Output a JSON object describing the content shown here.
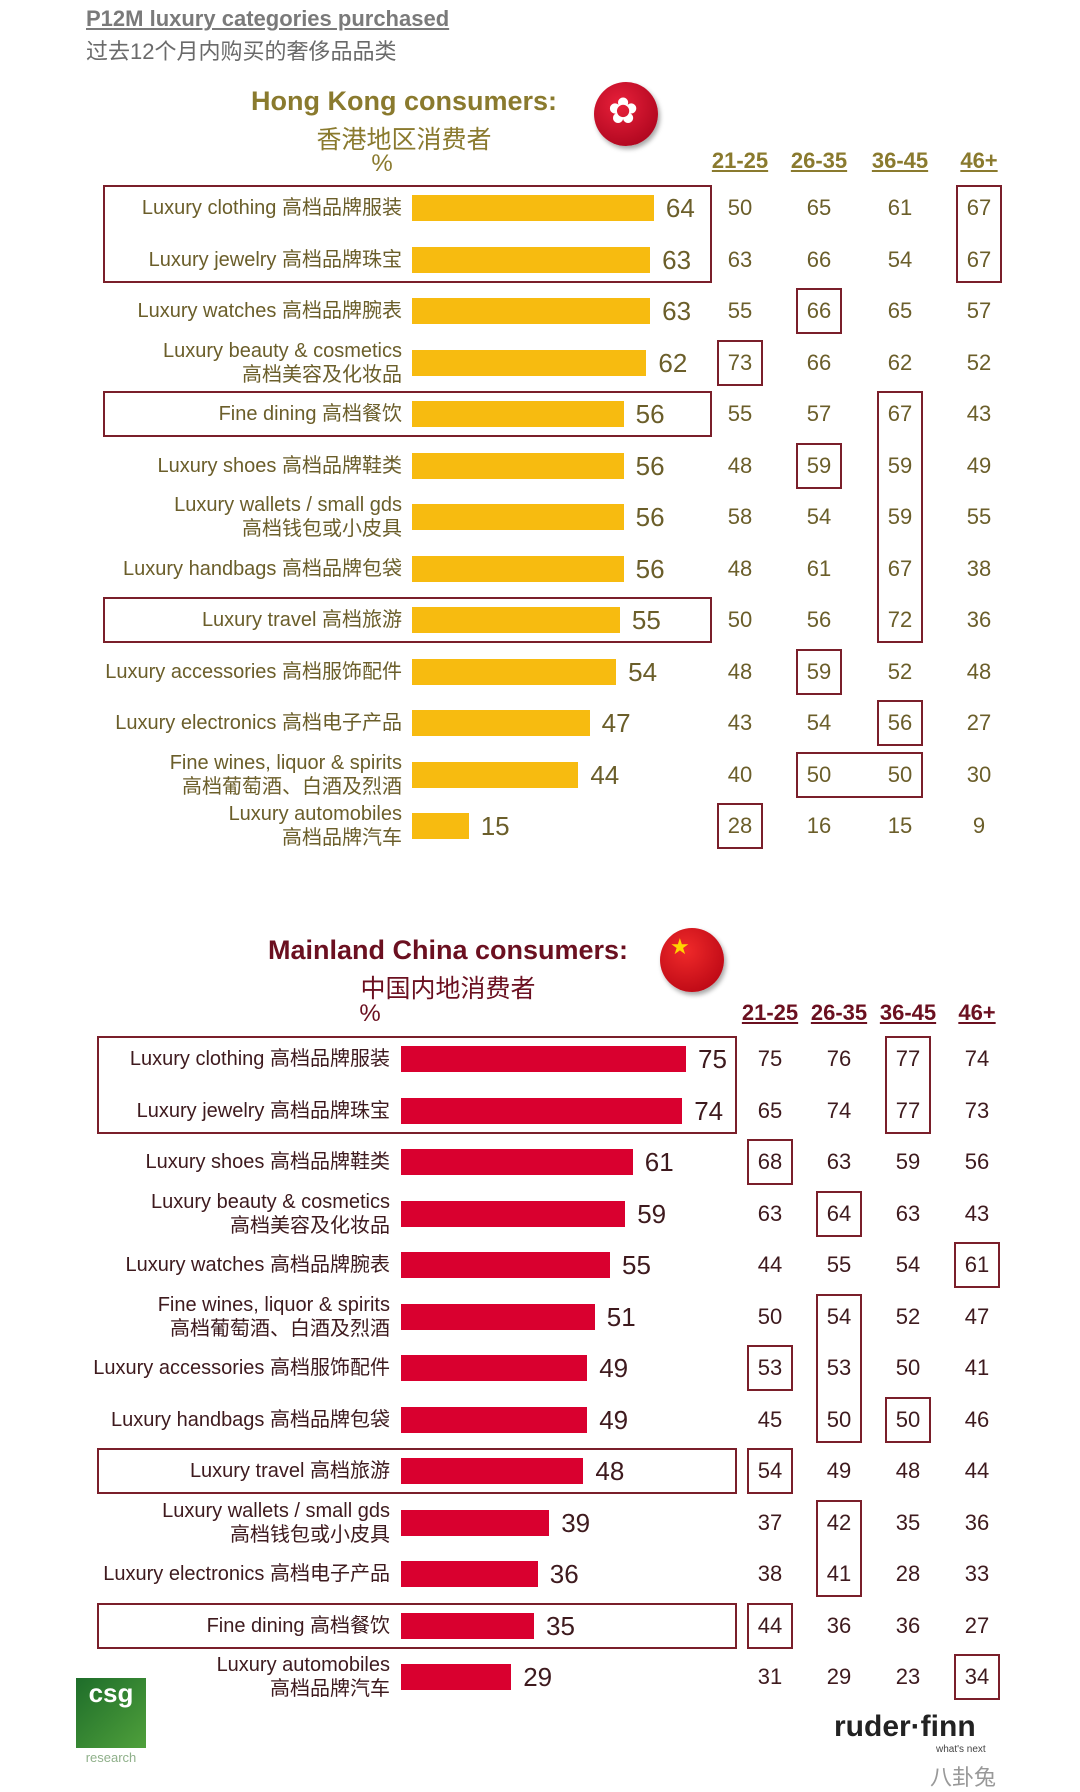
{
  "header": {
    "title": "P12M luxury categories purchased",
    "subtitle": "过去12个月内购买的奢侈品品类"
  },
  "colors": {
    "hk_bar": "#f7bb10",
    "cn_bar": "#d9002f",
    "hk_text": "#6b5e2a",
    "hk_title": "#8a7a2e",
    "cn_text": "#3e1a1e",
    "cn_title": "#6b1020",
    "box": "#7a1f2a"
  },
  "chart_data": [
    {
      "type": "bar",
      "orientation": "horizontal",
      "title": "Hong Kong consumers:",
      "subtitle": "香港地区消费者",
      "unit": "%",
      "flag": "hong-kong-flag-icon",
      "age_groups": [
        "21-25",
        "26-35",
        "36-45",
        "46+"
      ],
      "rows": [
        {
          "en": "Luxury clothing",
          "zh": "高档品牌服装",
          "two_line": false,
          "value": 64,
          "ages": [
            50,
            65,
            61,
            67
          ]
        },
        {
          "en": "Luxury jewelry",
          "zh": "高档品牌珠宝",
          "two_line": false,
          "value": 63,
          "ages": [
            63,
            66,
            54,
            67
          ]
        },
        {
          "en": "Luxury watches",
          "zh": "高档品牌腕表",
          "two_line": false,
          "value": 63,
          "ages": [
            55,
            66,
            65,
            57
          ]
        },
        {
          "en": "Luxury beauty & cosmetics",
          "zh": "高档美容及化妆品",
          "two_line": true,
          "value": 62,
          "ages": [
            73,
            66,
            62,
            52
          ]
        },
        {
          "en": "Fine dining",
          "zh": "高档餐饮",
          "two_line": false,
          "value": 56,
          "ages": [
            55,
            57,
            67,
            43
          ]
        },
        {
          "en": "Luxury shoes",
          "zh": "高档品牌鞋类",
          "two_line": false,
          "value": 56,
          "ages": [
            48,
            59,
            59,
            49
          ]
        },
        {
          "en": "Luxury wallets / small gds",
          "zh": "高档钱包或小皮具",
          "two_line": true,
          "value": 56,
          "ages": [
            58,
            54,
            59,
            55
          ]
        },
        {
          "en": "Luxury handbags",
          "zh": "高档品牌包袋",
          "two_line": false,
          "value": 56,
          "ages": [
            48,
            61,
            67,
            38
          ]
        },
        {
          "en": "Luxury travel",
          "zh": "高档旅游",
          "two_line": false,
          "value": 55,
          "ages": [
            50,
            56,
            72,
            36
          ]
        },
        {
          "en": "Luxury accessories",
          "zh": "高档服饰配件",
          "two_line": false,
          "value": 54,
          "ages": [
            48,
            59,
            52,
            48
          ]
        },
        {
          "en": "Luxury electronics",
          "zh": "高档电子产品",
          "two_line": false,
          "value": 47,
          "ages": [
            43,
            54,
            56,
            27
          ]
        },
        {
          "en": "Fine wines, liquor & spirits",
          "zh": "高档葡萄酒、白酒及烈酒",
          "two_line": true,
          "value": 44,
          "ages": [
            40,
            50,
            50,
            30
          ]
        },
        {
          "en": "Luxury automobiles",
          "zh": "高档品牌汽车",
          "two_line": true,
          "value": 15,
          "ages": [
            28,
            16,
            15,
            9
          ]
        }
      ],
      "row_highlights": [
        [
          0,
          1
        ],
        [
          4,
          4
        ],
        [
          8,
          8
        ]
      ],
      "cell_highlights": [
        {
          "cols": [
            3,
            3
          ],
          "rows": [
            0,
            1
          ]
        },
        {
          "cols": [
            1,
            1
          ],
          "rows": [
            2,
            2
          ]
        },
        {
          "cols": [
            0,
            0
          ],
          "rows": [
            3,
            3
          ]
        },
        {
          "cols": [
            2,
            2
          ],
          "rows": [
            4,
            8
          ]
        },
        {
          "cols": [
            1,
            1
          ],
          "rows": [
            5,
            5
          ]
        },
        {
          "cols": [
            1,
            1
          ],
          "rows": [
            9,
            9
          ]
        },
        {
          "cols": [
            2,
            2
          ],
          "rows": [
            10,
            10
          ]
        },
        {
          "cols": [
            1,
            2
          ],
          "rows": [
            11,
            11
          ]
        },
        {
          "cols": [
            0,
            0
          ],
          "rows": [
            12,
            12
          ]
        }
      ]
    },
    {
      "type": "bar",
      "orientation": "horizontal",
      "title": "Mainland China consumers:",
      "subtitle": "中国内地消费者",
      "unit": "%",
      "flag": "china-flag-icon",
      "age_groups": [
        "21-25",
        "26-35",
        "36-45",
        "46+"
      ],
      "rows": [
        {
          "en": "Luxury clothing",
          "zh": "高档品牌服装",
          "two_line": false,
          "value": 75,
          "ages": [
            75,
            76,
            77,
            74
          ]
        },
        {
          "en": "Luxury jewelry",
          "zh": "高档品牌珠宝",
          "two_line": false,
          "value": 74,
          "ages": [
            65,
            74,
            77,
            73
          ]
        },
        {
          "en": "Luxury shoes",
          "zh": "高档品牌鞋类",
          "two_line": false,
          "value": 61,
          "ages": [
            68,
            63,
            59,
            56
          ]
        },
        {
          "en": "Luxury beauty & cosmetics",
          "zh": "高档美容及化妆品",
          "two_line": true,
          "value": 59,
          "ages": [
            63,
            64,
            63,
            43
          ]
        },
        {
          "en": "Luxury watches",
          "zh": "高档品牌腕表",
          "two_line": false,
          "value": 55,
          "ages": [
            44,
            55,
            54,
            61
          ]
        },
        {
          "en": "Fine wines, liquor & spirits",
          "zh": "高档葡萄酒、白酒及烈酒",
          "two_line": true,
          "value": 51,
          "ages": [
            50,
            54,
            52,
            47
          ]
        },
        {
          "en": "Luxury accessories",
          "zh": "高档服饰配件",
          "two_line": false,
          "value": 49,
          "ages": [
            53,
            53,
            50,
            41
          ]
        },
        {
          "en": "Luxury handbags",
          "zh": "高档品牌包袋",
          "two_line": false,
          "value": 49,
          "ages": [
            45,
            50,
            50,
            46
          ]
        },
        {
          "en": "Luxury travel",
          "zh": "高档旅游",
          "two_line": false,
          "value": 48,
          "ages": [
            54,
            49,
            48,
            44
          ]
        },
        {
          "en": "Luxury wallets / small gds",
          "zh": "高档钱包或小皮具",
          "two_line": true,
          "value": 39,
          "ages": [
            37,
            42,
            35,
            36
          ]
        },
        {
          "en": "Luxury electronics",
          "zh": "高档电子产品",
          "two_line": false,
          "value": 36,
          "ages": [
            38,
            41,
            28,
            33
          ]
        },
        {
          "en": "Fine dining",
          "zh": "高档餐饮",
          "two_line": false,
          "value": 35,
          "ages": [
            44,
            36,
            36,
            27
          ]
        },
        {
          "en": "Luxury automobiles",
          "zh": "高档品牌汽车",
          "two_line": true,
          "value": 29,
          "ages": [
            31,
            29,
            23,
            34
          ]
        }
      ],
      "row_highlights": [
        [
          0,
          1
        ],
        [
          8,
          8
        ],
        [
          11,
          11
        ]
      ],
      "cell_highlights": [
        {
          "cols": [
            2,
            2
          ],
          "rows": [
            0,
            1
          ]
        },
        {
          "cols": [
            0,
            0
          ],
          "rows": [
            2,
            2
          ]
        },
        {
          "cols": [
            1,
            1
          ],
          "rows": [
            3,
            3
          ]
        },
        {
          "cols": [
            3,
            3
          ],
          "rows": [
            4,
            4
          ]
        },
        {
          "cols": [
            1,
            1
          ],
          "rows": [
            5,
            7
          ]
        },
        {
          "cols": [
            0,
            0
          ],
          "rows": [
            6,
            6
          ]
        },
        {
          "cols": [
            2,
            2
          ],
          "rows": [
            7,
            7
          ]
        },
        {
          "cols": [
            0,
            0
          ],
          "rows": [
            8,
            8
          ]
        },
        {
          "cols": [
            1,
            1
          ],
          "rows": [
            9,
            10
          ]
        },
        {
          "cols": [
            0,
            0
          ],
          "rows": [
            11,
            11
          ]
        },
        {
          "cols": [
            3,
            3
          ],
          "rows": [
            12,
            12
          ]
        }
      ]
    }
  ],
  "logos": {
    "csg": "csg",
    "csg_sub": "research",
    "ruderfinn": "ruder·finn",
    "ruderfinn_sub": "what's next",
    "watermark": "八卦兔"
  }
}
